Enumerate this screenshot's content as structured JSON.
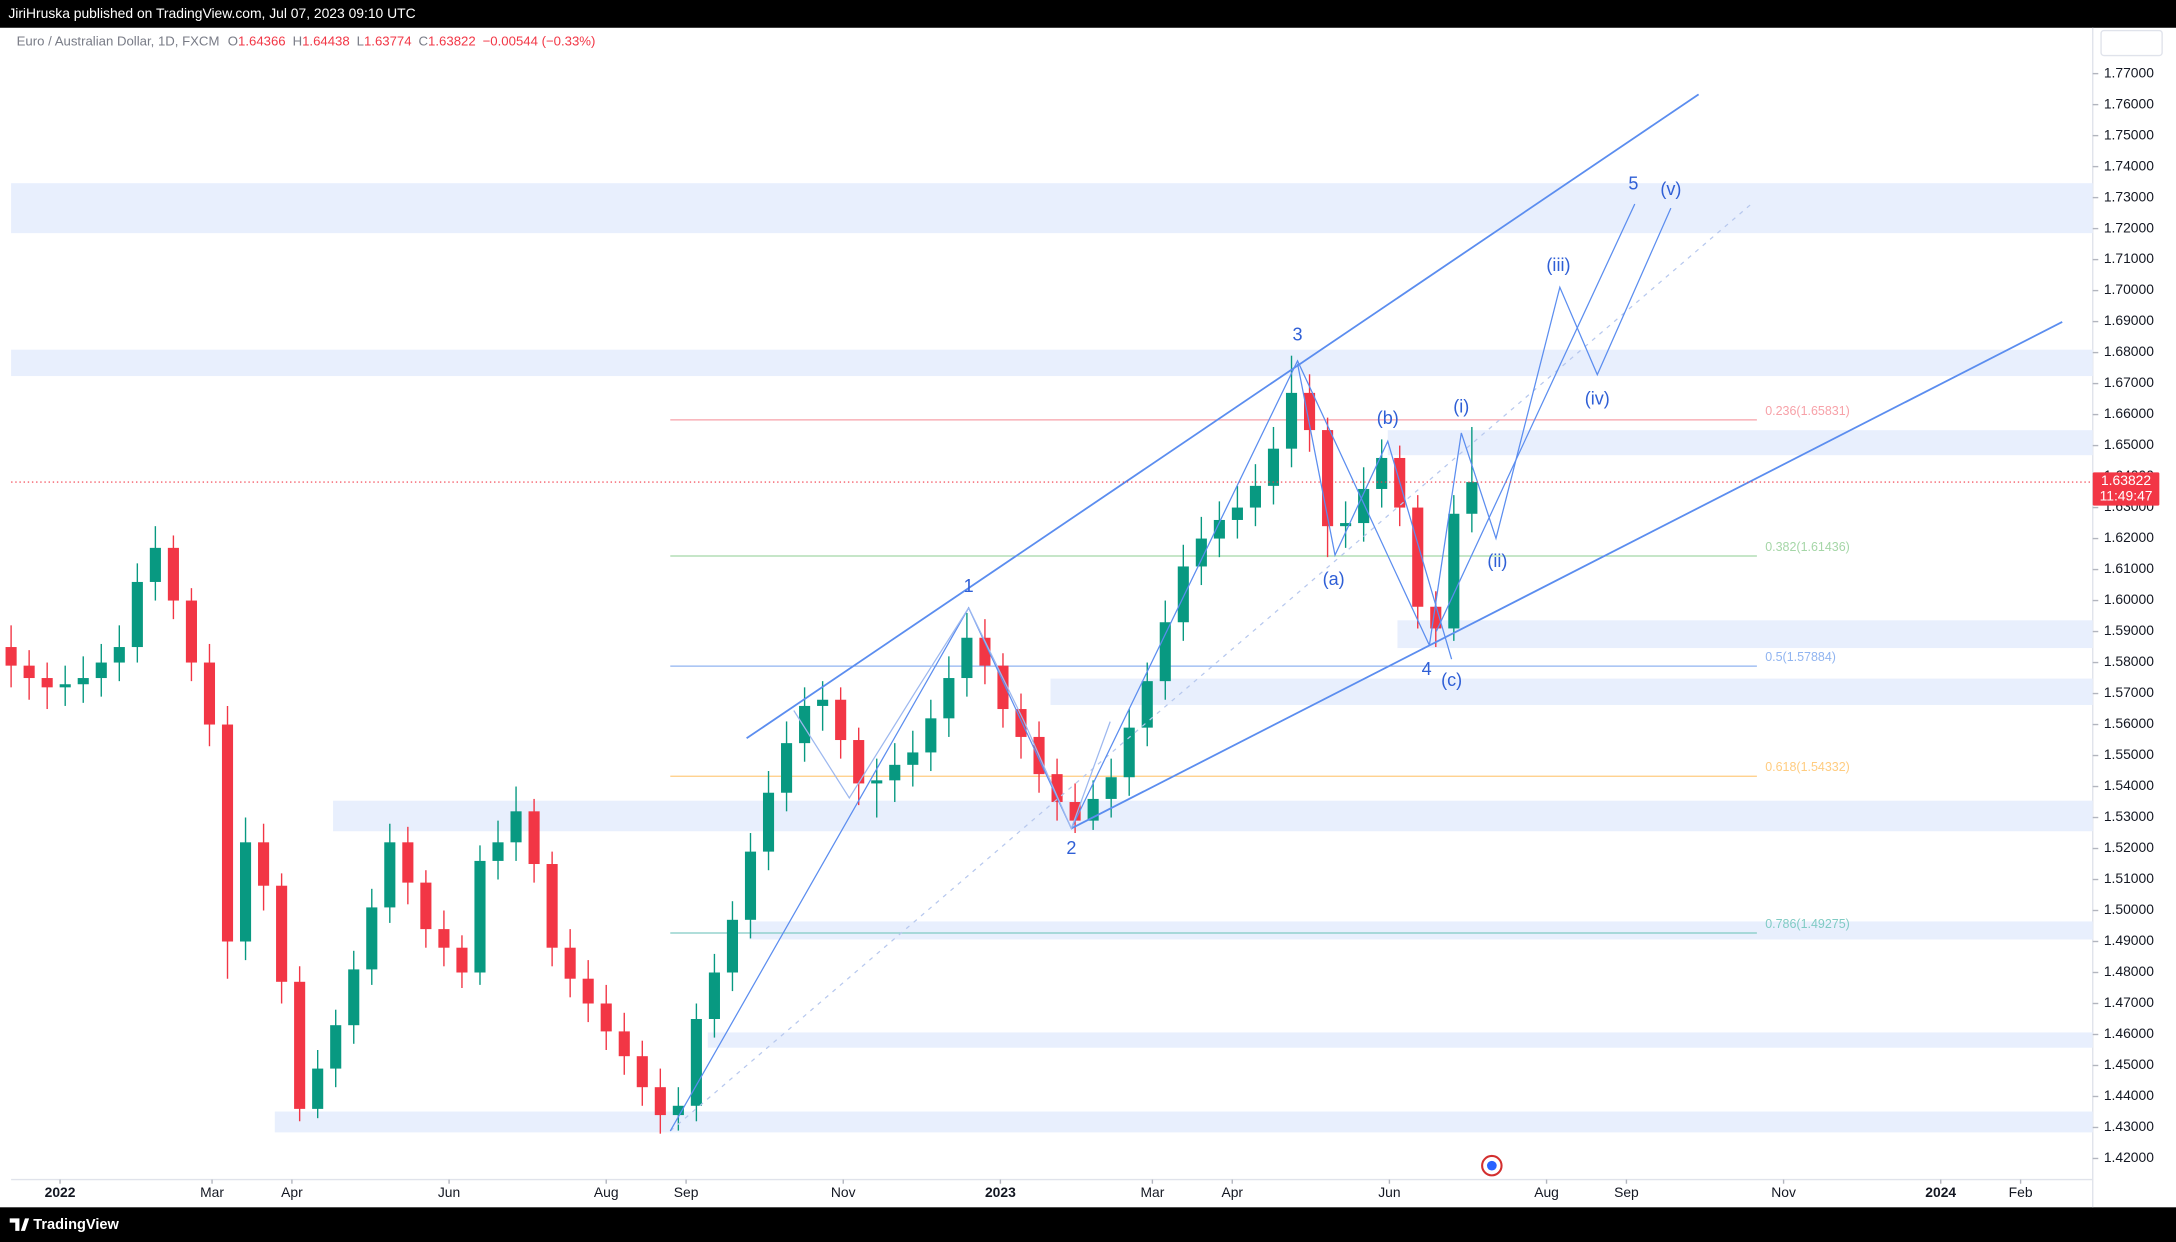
{
  "header": {
    "byline": "JiriHruska published on TradingView.com, Jul 07, 2023 09:10 UTC",
    "brand": "TradingView"
  },
  "chart_data": {
    "type": "candlestick",
    "title": "Euro / Australian Dollar, 1D, FXCM",
    "ohlc": [
      {
        "key": "O",
        "value": 1.64366
      },
      {
        "key": "H",
        "value": 1.64438
      },
      {
        "key": "L",
        "value": 1.63774
      },
      {
        "key": "C",
        "value": 1.63822
      }
    ],
    "change": "−0.00544 (−0.33%)",
    "x": [
      "2021-12-13",
      "2021-12-20",
      "2021-12-27",
      "2022-01-03",
      "2022-01-10",
      "2022-01-17",
      "2022-01-24",
      "2022-01-31",
      "2022-02-07",
      "2022-02-14",
      "2022-02-21",
      "2022-02-28",
      "2022-03-07",
      "2022-03-14",
      "2022-03-21",
      "2022-03-28",
      "2022-04-04",
      "2022-04-11",
      "2022-04-18",
      "2022-04-25",
      "2022-05-02",
      "2022-05-09",
      "2022-05-16",
      "2022-05-23",
      "2022-05-30",
      "2022-06-06",
      "2022-06-13",
      "2022-06-20",
      "2022-06-27",
      "2022-07-04",
      "2022-07-11",
      "2022-07-18",
      "2022-07-25",
      "2022-08-01",
      "2022-08-08",
      "2022-08-15",
      "2022-08-22",
      "2022-08-29",
      "2022-09-05",
      "2022-09-12",
      "2022-09-19",
      "2022-09-26",
      "2022-10-03",
      "2022-10-10",
      "2022-10-17",
      "2022-10-24",
      "2022-10-31",
      "2022-11-07",
      "2022-11-14",
      "2022-11-21",
      "2022-11-28",
      "2022-12-05",
      "2022-12-12",
      "2022-12-19",
      "2022-12-26",
      "2023-01-02",
      "2023-01-09",
      "2023-01-16",
      "2023-01-23",
      "2023-01-30",
      "2023-02-06",
      "2023-02-13",
      "2023-02-20",
      "2023-02-27",
      "2023-03-06",
      "2023-03-13",
      "2023-03-20",
      "2023-03-27",
      "2023-04-03",
      "2023-04-10",
      "2023-04-17",
      "2023-04-24",
      "2023-05-01",
      "2023-05-08",
      "2023-05-15",
      "2023-05-22",
      "2023-05-29",
      "2023-06-05",
      "2023-06-12",
      "2023-06-19",
      "2023-06-26",
      "2023-07-03"
    ],
    "open": [
      1.585,
      1.579,
      1.575,
      1.572,
      1.573,
      1.575,
      1.58,
      1.585,
      1.606,
      1.617,
      1.6,
      1.58,
      1.56,
      1.49,
      1.522,
      1.508,
      1.477,
      1.436,
      1.449,
      1.463,
      1.481,
      1.501,
      1.522,
      1.509,
      1.494,
      1.488,
      1.48,
      1.516,
      1.522,
      1.532,
      1.515,
      1.488,
      1.478,
      1.47,
      1.461,
      1.453,
      1.443,
      1.434,
      1.437,
      1.465,
      1.48,
      1.497,
      1.519,
      1.538,
      1.554,
      1.566,
      1.568,
      1.555,
      1.541,
      1.542,
      1.547,
      1.551,
      1.562,
      1.575,
      1.588,
      1.579,
      1.565,
      1.556,
      1.544,
      1.535,
      1.529,
      1.536,
      1.543,
      1.559,
      1.574,
      1.593,
      1.611,
      1.62,
      1.626,
      1.63,
      1.637,
      1.649,
      1.667,
      1.655,
      1.624,
      1.625,
      1.636,
      1.646,
      1.63,
      1.598,
      1.591,
      1.628
    ],
    "high": [
      1.592,
      1.584,
      1.58,
      1.579,
      1.582,
      1.586,
      1.592,
      1.612,
      1.624,
      1.621,
      1.604,
      1.586,
      1.566,
      1.53,
      1.528,
      1.512,
      1.482,
      1.455,
      1.468,
      1.487,
      1.507,
      1.528,
      1.527,
      1.513,
      1.5,
      1.492,
      1.521,
      1.529,
      1.54,
      1.536,
      1.519,
      1.494,
      1.484,
      1.476,
      1.467,
      1.458,
      1.449,
      1.443,
      1.47,
      1.486,
      1.503,
      1.525,
      1.545,
      1.561,
      1.572,
      1.574,
      1.572,
      1.559,
      1.549,
      1.554,
      1.558,
      1.568,
      1.582,
      1.596,
      1.594,
      1.583,
      1.57,
      1.561,
      1.549,
      1.541,
      1.542,
      1.549,
      1.565,
      1.58,
      1.6,
      1.618,
      1.627,
      1.632,
      1.637,
      1.644,
      1.656,
      1.679,
      1.673,
      1.659,
      1.632,
      1.643,
      1.652,
      1.65,
      1.634,
      1.603,
      1.634,
      1.656
    ],
    "low": [
      1.572,
      1.568,
      1.565,
      1.566,
      1.567,
      1.569,
      1.574,
      1.58,
      1.6,
      1.594,
      1.574,
      1.553,
      1.478,
      1.484,
      1.5,
      1.47,
      1.432,
      1.433,
      1.443,
      1.457,
      1.476,
      1.496,
      1.502,
      1.488,
      1.482,
      1.475,
      1.476,
      1.51,
      1.516,
      1.509,
      1.482,
      1.472,
      1.464,
      1.455,
      1.447,
      1.437,
      1.428,
      1.429,
      1.432,
      1.459,
      1.474,
      1.491,
      1.513,
      1.532,
      1.548,
      1.558,
      1.549,
      1.534,
      1.53,
      1.535,
      1.54,
      1.545,
      1.556,
      1.569,
      1.573,
      1.559,
      1.549,
      1.538,
      1.529,
      1.525,
      1.526,
      1.53,
      1.537,
      1.553,
      1.568,
      1.587,
      1.605,
      1.614,
      1.62,
      1.624,
      1.631,
      1.643,
      1.648,
      1.614,
      1.617,
      1.619,
      1.63,
      1.624,
      1.591,
      1.585,
      1.587,
      1.622
    ],
    "close": [
      1.579,
      1.575,
      1.572,
      1.573,
      1.575,
      1.58,
      1.585,
      1.606,
      1.617,
      1.6,
      1.58,
      1.56,
      1.49,
      1.522,
      1.508,
      1.477,
      1.436,
      1.449,
      1.463,
      1.481,
      1.501,
      1.522,
      1.509,
      1.494,
      1.488,
      1.48,
      1.516,
      1.522,
      1.532,
      1.515,
      1.488,
      1.478,
      1.47,
      1.461,
      1.453,
      1.443,
      1.434,
      1.437,
      1.465,
      1.48,
      1.497,
      1.519,
      1.538,
      1.554,
      1.566,
      1.568,
      1.555,
      1.541,
      1.542,
      1.547,
      1.551,
      1.562,
      1.575,
      1.588,
      1.579,
      1.565,
      1.556,
      1.544,
      1.535,
      1.529,
      1.536,
      1.543,
      1.559,
      1.574,
      1.593,
      1.611,
      1.62,
      1.626,
      1.63,
      1.637,
      1.649,
      1.667,
      1.655,
      1.624,
      1.625,
      1.636,
      1.646,
      1.63,
      1.598,
      1.591,
      1.628,
      1.63822
    ],
    "up_color": "#089981",
    "down_color": "#f23645",
    "xlim": [
      "2021-12-13",
      "2024-02-29"
    ],
    "xticks": [
      {
        "value": "2022-01-01",
        "label": "2022"
      },
      {
        "value": "2022-03-01",
        "label": "Mar"
      },
      {
        "value": "2022-04-01",
        "label": "Apr"
      },
      {
        "value": "2022-06-01",
        "label": "Jun"
      },
      {
        "value": "2022-08-01",
        "label": "Aug"
      },
      {
        "value": "2022-09-01",
        "label": "Sep"
      },
      {
        "value": "2022-11-01",
        "label": "Nov"
      },
      {
        "value": "2023-01-01",
        "label": "2023"
      },
      {
        "value": "2023-03-01",
        "label": "Mar"
      },
      {
        "value": "2023-04-01",
        "label": "Apr"
      },
      {
        "value": "2023-06-01",
        "label": "Jun"
      },
      {
        "value": "2023-08-01",
        "label": "Aug"
      },
      {
        "value": "2023-09-01",
        "label": "Sep"
      },
      {
        "value": "2023-11-01",
        "label": "Nov"
      },
      {
        "value": "2024-01-01",
        "label": "2024"
      },
      {
        "value": "2024-02-01",
        "label": "Feb"
      }
    ],
    "ylim": [
      1.4132,
      1.7848
    ],
    "yticks": [
      {
        "value": 1.42,
        "label": "1.42000"
      },
      {
        "value": 1.43,
        "label": "1.43000"
      },
      {
        "value": 1.44,
        "label": "1.44000"
      },
      {
        "value": 1.45,
        "label": "1.45000"
      },
      {
        "value": 1.46,
        "label": "1.46000"
      },
      {
        "value": 1.47,
        "label": "1.47000"
      },
      {
        "value": 1.48,
        "label": "1.48000"
      },
      {
        "value": 1.49,
        "label": "1.49000"
      },
      {
        "value": 1.5,
        "label": "1.50000"
      },
      {
        "value": 1.51,
        "label": "1.51000"
      },
      {
        "value": 1.52,
        "label": "1.52000"
      },
      {
        "value": 1.53,
        "label": "1.53000"
      },
      {
        "value": 1.54,
        "label": "1.54000"
      },
      {
        "value": 1.55,
        "label": "1.55000"
      },
      {
        "value": 1.56,
        "label": "1.56000"
      },
      {
        "value": 1.57,
        "label": "1.57000"
      },
      {
        "value": 1.58,
        "label": "1.58000"
      },
      {
        "value": 1.59,
        "label": "1.59000"
      },
      {
        "value": 1.6,
        "label": "1.60000"
      },
      {
        "value": 1.61,
        "label": "1.61000"
      },
      {
        "value": 1.62,
        "label": "1.62000"
      },
      {
        "value": 1.63,
        "label": "1.63000"
      },
      {
        "value": 1.64,
        "label": "1.64000"
      },
      {
        "value": 1.65,
        "label": "1.65000"
      },
      {
        "value": 1.66,
        "label": "1.66000"
      },
      {
        "value": 1.67,
        "label": "1.67000"
      },
      {
        "value": 1.68,
        "label": "1.68000"
      },
      {
        "value": 1.69,
        "label": "1.69000"
      },
      {
        "value": 1.7,
        "label": "1.70000"
      },
      {
        "value": 1.71,
        "label": "1.71000"
      },
      {
        "value": 1.72,
        "label": "1.72000"
      },
      {
        "value": 1.73,
        "label": "1.73000"
      },
      {
        "value": 1.74,
        "label": "1.74000"
      },
      {
        "value": 1.75,
        "label": "1.75000"
      },
      {
        "value": 1.76,
        "label": "1.76000"
      },
      {
        "value": 1.77,
        "label": "1.77000"
      }
    ],
    "last_price": 1.63822,
    "countdown": "11:49:47",
    "fib_levels": [
      {
        "label": "0.236(1.65831)",
        "price": 1.65831,
        "color": "#f7a1a8"
      },
      {
        "label": "0.382(1.61436)",
        "price": 1.61436,
        "color": "#a5d6a7"
      },
      {
        "label": "0.5(1.57884)",
        "price": 1.57884,
        "color": "#90b4f0"
      },
      {
        "label": "0.618(1.54332)",
        "price": 1.54332,
        "color": "#ffcc80"
      },
      {
        "label": "0.786(1.49275)",
        "price": 1.49275,
        "color": "#80cbc4"
      }
    ],
    "wave_labels": [
      "1",
      "2",
      "3",
      "4",
      "5",
      "(a)",
      "(b)",
      "(c)",
      "(i)",
      "(ii)",
      "(iii)",
      "(iv)",
      "(v)"
    ]
  }
}
